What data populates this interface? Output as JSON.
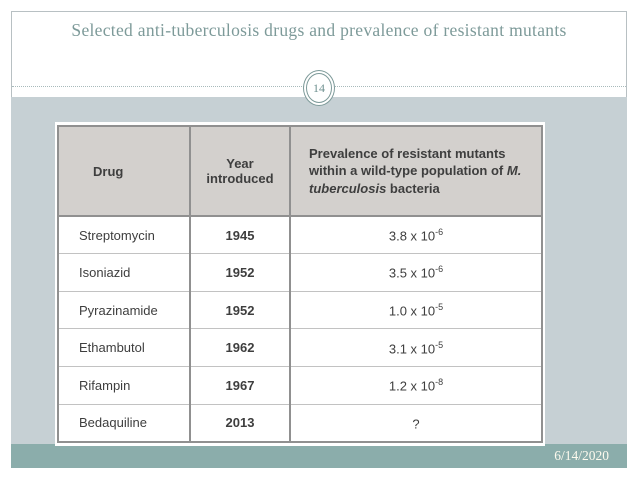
{
  "slide": {
    "title": "Selected anti-tuberculosis drugs and prevalence of resistant mutants",
    "slide_number": "14",
    "footer_date": "6/14/2020"
  },
  "table": {
    "header": {
      "drug": "Drug",
      "year": "Year introduced",
      "prevalence_prefix": "Prevalence of resistant mutants within a wild-type population of ",
      "prevalence_italic": "M. tuberculosis",
      "prevalence_suffix": " bacteria"
    },
    "rows": [
      {
        "drug": "Streptomycin",
        "year": "1945",
        "prevalence": "3.8 x 10",
        "exponent": "-6"
      },
      {
        "drug": "Isoniazid",
        "year": "1952",
        "prevalence": "3.5 x 10",
        "exponent": "-6"
      },
      {
        "drug": "Pyrazinamide",
        "year": "1952",
        "prevalence": "1.0 x 10",
        "exponent": "-5"
      },
      {
        "drug": "Ethambutol",
        "year": "1962",
        "prevalence": "3.1 x 10",
        "exponent": "-5"
      },
      {
        "drug": "Rifampin",
        "year": "1967",
        "prevalence": "1.2 x 10",
        "exponent": "-8"
      },
      {
        "drug": "Bedaquiline",
        "year": "2013",
        "prevalence": "?",
        "exponent": ""
      }
    ]
  },
  "colors": {
    "accent_teal": "#7d9a99",
    "footer_bar": "#8badab",
    "content_background": "#c6d0d4",
    "table_header_background": "#d3d0cd",
    "table_border": "#909090",
    "date_text": "#fdfaee"
  }
}
